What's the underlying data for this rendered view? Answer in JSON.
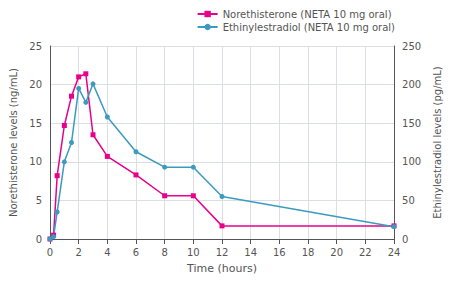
{
  "chart_data": {
    "type": "line",
    "x": [
      0,
      0.25,
      0.5,
      1,
      1.5,
      2,
      2.5,
      3,
      4,
      6,
      8,
      10,
      12,
      24
    ],
    "series": [
      {
        "name": "Norethisterone (NETA 10 mg oral)",
        "color": "#e8008a",
        "marker": "square",
        "values": [
          0,
          0.5,
          8.2,
          14.7,
          18.5,
          21.0,
          21.4,
          13.5,
          10.7,
          8.3,
          5.6,
          5.6,
          1.7,
          1.7
        ]
      },
      {
        "name": "Ethinylestradiol (NETA 10 mg oral)",
        "color": "#3a9bbf",
        "marker": "circle",
        "axis": "y2",
        "values": [
          0,
          3,
          35,
          100,
          125,
          195,
          177,
          201,
          158,
          113,
          93,
          93,
          55,
          16
        ]
      }
    ],
    "xlabel": "Time (hours)",
    "ylabel": "Norethisterone levels (ng/mL)",
    "y2label": "Ethinylestradiol levels (pg/mL)",
    "xlim": [
      0,
      24
    ],
    "xticks": [
      0,
      2,
      4,
      6,
      8,
      10,
      12,
      14,
      16,
      18,
      20,
      22,
      24
    ],
    "ylim": [
      0,
      25
    ],
    "yticks": [
      0,
      5,
      10,
      15,
      20,
      25
    ],
    "y2lim": [
      0,
      250
    ],
    "y2ticks": [
      0,
      50,
      100,
      150,
      200,
      250
    ],
    "grid": true,
    "legend": "upper right"
  }
}
